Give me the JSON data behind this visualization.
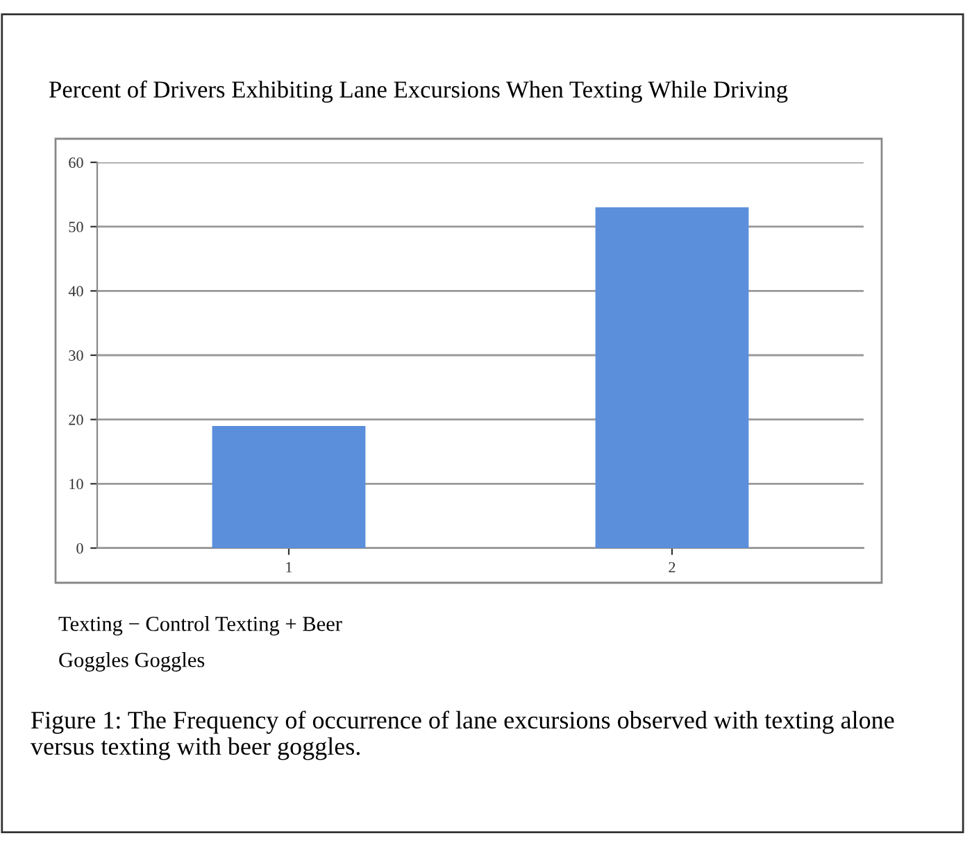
{
  "chart_data": {
    "type": "bar",
    "title": "Percent of Drivers Exhibiting Lane Excursions When Texting While Driving",
    "categories": [
      "1",
      "2"
    ],
    "values": [
      19,
      53
    ],
    "color": "#5b8fdc",
    "ylim": [
      0,
      60
    ],
    "yticks": [
      0,
      10,
      20,
      30,
      40,
      50,
      60
    ],
    "grid": "y",
    "annotations": [
      "Texting − Control Texting + Beer",
      "Goggles Goggles",
      "Figure 1: The Frequency of occurrence of lane excursions observed with texting alone versus texting with beer goggles."
    ]
  }
}
